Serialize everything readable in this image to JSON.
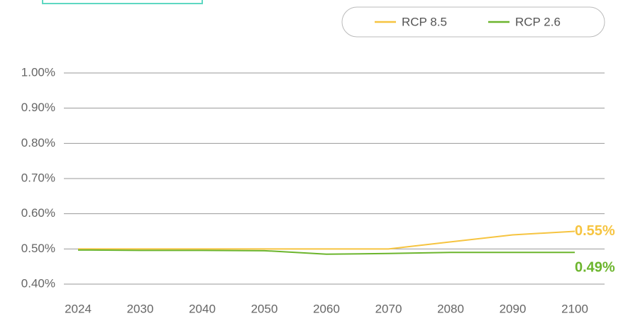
{
  "chart_data": {
    "type": "line",
    "categories": [
      "2024",
      "2030",
      "2040",
      "2050",
      "2060",
      "2070",
      "2080",
      "2090",
      "2100"
    ],
    "series": [
      {
        "name": "RCP 8.5",
        "color": "#f6c440",
        "values": [
          0.5,
          0.5,
          0.5,
          0.5,
          0.5,
          0.5,
          0.52,
          0.54,
          0.55
        ],
        "value_labels": [
          null,
          null,
          null,
          null,
          null,
          null,
          null,
          null,
          "0.55%"
        ]
      },
      {
        "name": "RCP 2.6",
        "color": "#6cb52d",
        "values": [
          0.497,
          0.496,
          0.496,
          0.495,
          0.485,
          0.487,
          0.49,
          0.49,
          0.49
        ],
        "value_labels": [
          null,
          null,
          null,
          null,
          null,
          null,
          null,
          null,
          "0.49%"
        ]
      }
    ],
    "ylim": [
      0.4,
      1.0
    ],
    "yticks": [
      {
        "value": 0.4,
        "label": "0.40%"
      },
      {
        "value": 0.5,
        "label": "0.50%"
      },
      {
        "value": 0.6,
        "label": "0.60%"
      },
      {
        "value": 0.7,
        "label": "0.70%"
      },
      {
        "value": 0.8,
        "label": "0.80%"
      },
      {
        "value": 0.9,
        "label": "0.90%"
      },
      {
        "value": 1.0,
        "label": "1.00%"
      }
    ],
    "grid": true,
    "legend": "top-right"
  }
}
